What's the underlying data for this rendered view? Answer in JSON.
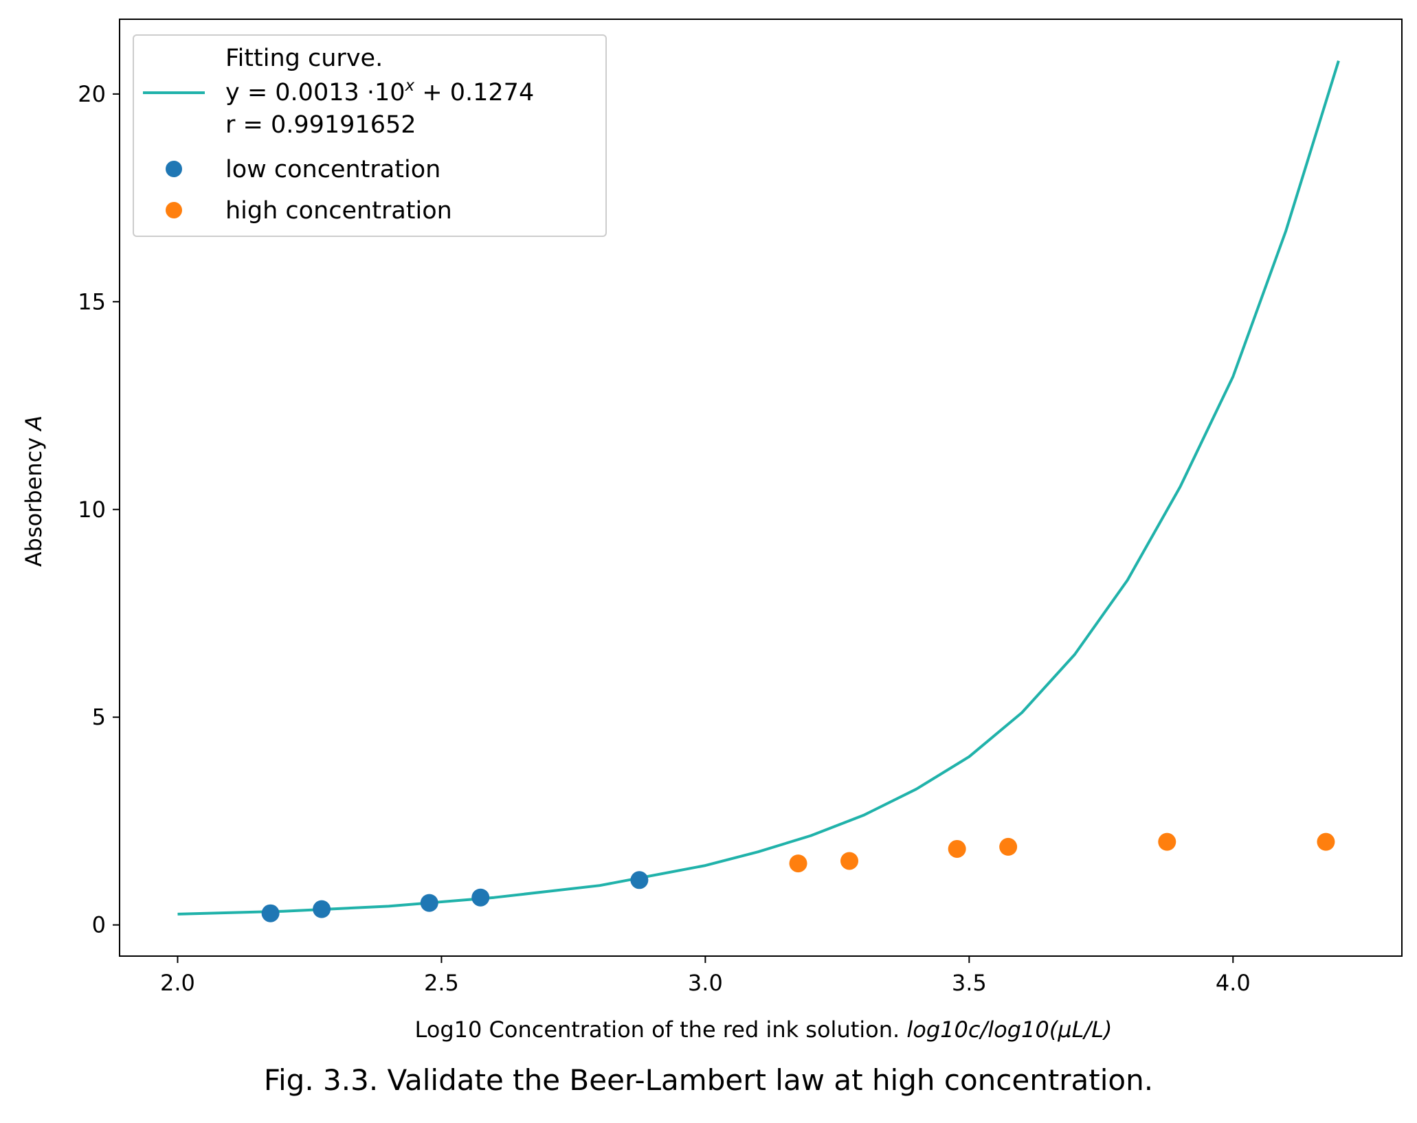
{
  "caption": "Fig. 3.3. Validate the Beer-Lambert law at high concentration.",
  "chart_data": {
    "type": "scatter",
    "xlabel_main": "Log10 Concentration of the red ink solution.",
    "xlabel_math": "log10c/log10(μL/L)",
    "ylabel_main": "Absorbency",
    "ylabel_math": "A",
    "xlim": [
      1.89,
      4.32
    ],
    "ylim": [
      -0.75,
      21.8
    ],
    "x_ticks": [
      2.0,
      2.5,
      3.0,
      3.5,
      4.0
    ],
    "x_tick_labels": [
      "2.0",
      "2.5",
      "3.0",
      "3.5",
      "4.0"
    ],
    "y_ticks": [
      0,
      5,
      10,
      15,
      20
    ],
    "y_tick_labels": [
      "0",
      "5",
      "10",
      "15",
      "20"
    ],
    "grid": false,
    "legend_placement": "top-left",
    "series": [
      {
        "name": "Fitting curve.",
        "kind": "line",
        "color": "#20b2aa",
        "equation_lines": [
          "y = 0.0013 ·10",
          "x",
          " + 0.1274",
          "r = 0.99191652"
        ],
        "x": [
          2.0,
          2.2,
          2.4,
          2.6,
          2.8,
          3.0,
          3.1,
          3.2,
          3.3,
          3.4,
          3.5,
          3.6,
          3.7,
          3.8,
          3.9,
          4.0,
          4.1,
          4.2
        ],
        "y": [
          0.26,
          0.33,
          0.45,
          0.66,
          0.95,
          1.43,
          1.76,
          2.15,
          2.64,
          3.27,
          4.05,
          5.11,
          6.51,
          8.3,
          10.55,
          13.2,
          16.7,
          20.8
        ]
      },
      {
        "name": "low concentration",
        "kind": "scatter",
        "color": "#1f77b4",
        "x": [
          2.176,
          2.273,
          2.477,
          2.574,
          2.875
        ],
        "y": [
          0.28,
          0.38,
          0.53,
          0.66,
          1.08
        ]
      },
      {
        "name": "high concentration",
        "kind": "scatter",
        "color": "#ff7f0e",
        "x": [
          3.176,
          3.273,
          3.477,
          3.574,
          3.875,
          4.176
        ],
        "y": [
          1.48,
          1.54,
          1.83,
          1.88,
          2.0,
          2.0
        ]
      }
    ]
  }
}
